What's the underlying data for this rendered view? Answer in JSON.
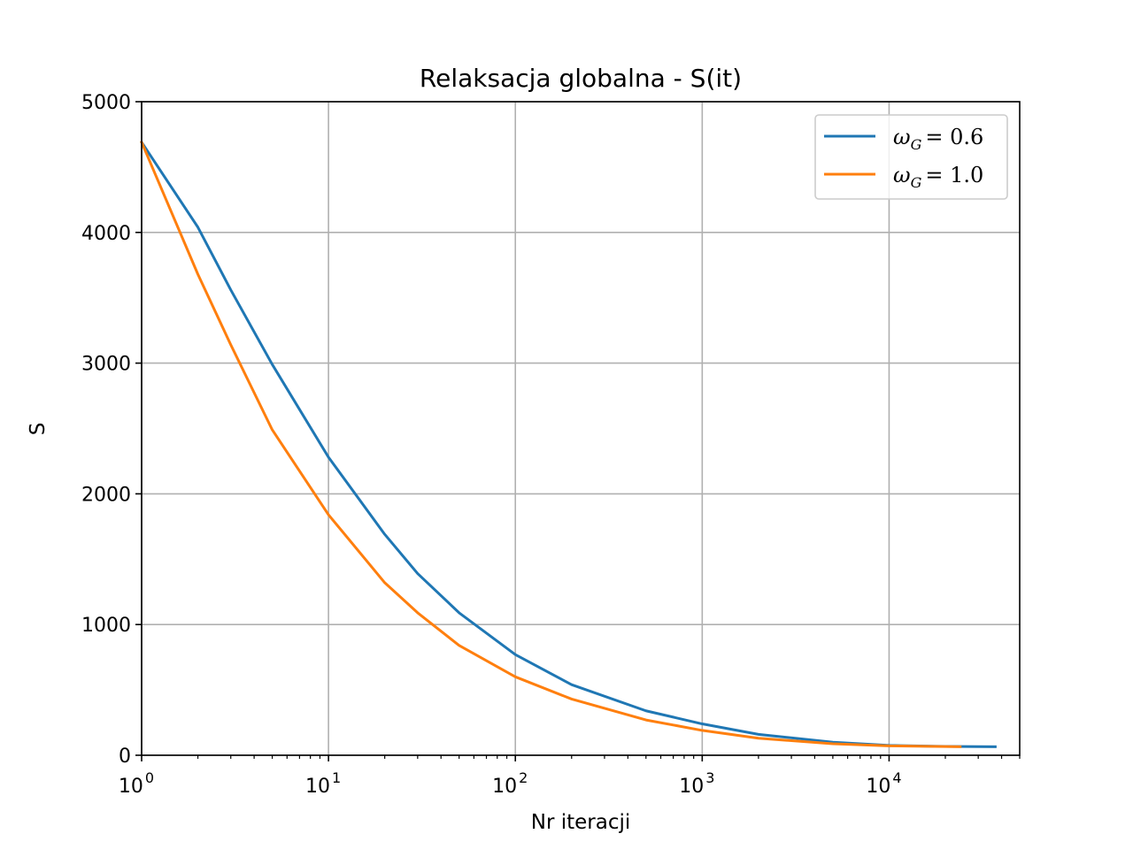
{
  "chart_data": {
    "type": "line",
    "title": "Relaksacja globalna - S(it)",
    "xlabel": "Nr iteracji",
    "ylabel": "S",
    "xscale": "log",
    "xlim": [
      1,
      50000
    ],
    "ylim": [
      0,
      5000
    ],
    "x_ticks": [
      {
        "value": 1,
        "base": "10",
        "exp": "0"
      },
      {
        "value": 10,
        "base": "10",
        "exp": "1"
      },
      {
        "value": 100,
        "base": "10",
        "exp": "2"
      },
      {
        "value": 1000,
        "base": "10",
        "exp": "3"
      },
      {
        "value": 10000,
        "base": "10",
        "exp": "4"
      }
    ],
    "y_ticks": [
      {
        "value": 0,
        "label": "0"
      },
      {
        "value": 1000,
        "label": "1000"
      },
      {
        "value": 2000,
        "label": "2000"
      },
      {
        "value": 3000,
        "label": "3000"
      },
      {
        "value": 4000,
        "label": "4000"
      },
      {
        "value": 5000,
        "label": "5000"
      }
    ],
    "grid": true,
    "legend_position": "top-right",
    "series": [
      {
        "name": "ω_G = 0.6",
        "legend_symbol": "ω",
        "legend_sub": "G",
        "legend_value": "= 0.6",
        "color": "#1f77b4",
        "points": [
          [
            1,
            4690
          ],
          [
            2,
            4040
          ],
          [
            3,
            3560
          ],
          [
            5,
            2990
          ],
          [
            10,
            2280
          ],
          [
            20,
            1690
          ],
          [
            30,
            1390
          ],
          [
            50,
            1090
          ],
          [
            100,
            770
          ],
          [
            200,
            540
          ],
          [
            500,
            340
          ],
          [
            1000,
            240
          ],
          [
            2000,
            160
          ],
          [
            5000,
            100
          ],
          [
            10000,
            75
          ],
          [
            20000,
            68
          ],
          [
            37000,
            65
          ]
        ]
      },
      {
        "name": "ω_G = 1.0",
        "legend_symbol": "ω",
        "legend_sub": "G",
        "legend_value": "= 1.0",
        "color": "#ff7f0e",
        "points": [
          [
            1,
            4690
          ],
          [
            2,
            3680
          ],
          [
            3,
            3140
          ],
          [
            5,
            2490
          ],
          [
            10,
            1840
          ],
          [
            20,
            1320
          ],
          [
            30,
            1090
          ],
          [
            50,
            840
          ],
          [
            100,
            600
          ],
          [
            200,
            430
          ],
          [
            500,
            270
          ],
          [
            1000,
            190
          ],
          [
            2000,
            130
          ],
          [
            5000,
            88
          ],
          [
            10000,
            72
          ],
          [
            24000,
            65
          ]
        ]
      }
    ]
  }
}
